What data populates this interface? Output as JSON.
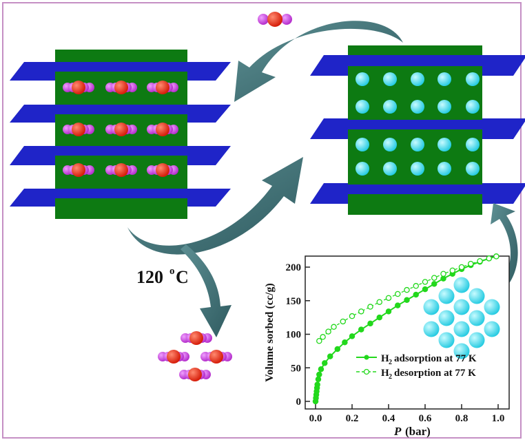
{
  "colors": {
    "frame": "#c58fc4",
    "layer_plate": "#1f24c8",
    "framework": "#0d7a12",
    "arrow": "#3f6e72",
    "guest_center": "#e52b14",
    "guest_end": "#c43fd6",
    "hydrogen": "#29d6ea",
    "series": "#22d81c"
  },
  "temperature_label": {
    "value": "120",
    "unit": "C",
    "superscript": "o"
  },
  "chart_data": {
    "type": "scatter",
    "xlabel_italic": "P",
    "xlabel_unit": "(bar)",
    "ylabel": "Volume sorbed (cc/g)",
    "xlim": [
      0,
      1.0
    ],
    "ylim": [
      0,
      220
    ],
    "x_ticks": [
      "0.0",
      "0.2",
      "0.4",
      "0.6",
      "0.8",
      "1.0"
    ],
    "y_ticks": [
      "0",
      "50",
      "100",
      "150",
      "200"
    ],
    "legend_placement": "bottom-right",
    "series": [
      {
        "name": "adsorption at 77 K",
        "name_prefix": "H",
        "name_sub": "2",
        "marker": "filled-circle",
        "x": [
          0.0,
          0.002,
          0.004,
          0.006,
          0.008,
          0.01,
          0.015,
          0.02,
          0.03,
          0.05,
          0.08,
          0.12,
          0.16,
          0.2,
          0.25,
          0.3,
          0.35,
          0.4,
          0.45,
          0.5,
          0.55,
          0.6,
          0.65,
          0.7,
          0.75,
          0.8,
          0.85,
          0.9,
          0.95,
          0.99
        ],
        "y": [
          0,
          5,
          10,
          15,
          20,
          25,
          33,
          40,
          48,
          57,
          67,
          78,
          88,
          97,
          107,
          116,
          125,
          134,
          143,
          151,
          159,
          167,
          175,
          183,
          190,
          197,
          203,
          208,
          213,
          216
        ]
      },
      {
        "name": "desorption at 77 K",
        "name_prefix": "H",
        "name_sub": "2",
        "marker": "open-circle",
        "x": [
          0.02,
          0.04,
          0.07,
          0.1,
          0.15,
          0.2,
          0.25,
          0.3,
          0.35,
          0.4,
          0.45,
          0.5,
          0.55,
          0.6,
          0.65,
          0.7,
          0.75,
          0.8,
          0.85,
          0.9,
          0.95,
          0.99
        ],
        "y": [
          90,
          96,
          104,
          111,
          119,
          127,
          134,
          141,
          148,
          154,
          160,
          166,
          172,
          178,
          184,
          190,
          195,
          200,
          205,
          209,
          213,
          216
        ]
      }
    ]
  }
}
